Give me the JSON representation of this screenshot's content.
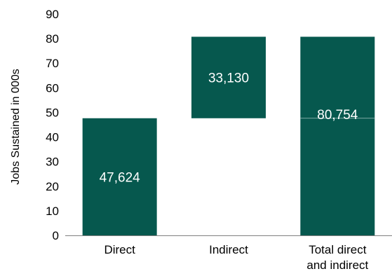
{
  "chart_data": {
    "type": "bar",
    "subtype": "waterfall",
    "categories": [
      "Direct",
      "Indirect",
      "Total direct and indirect"
    ],
    "category_lines": [
      [
        "Direct"
      ],
      [
        "Indirect"
      ],
      [
        "Total direct",
        "and indirect"
      ]
    ],
    "bars": [
      {
        "category": "Direct",
        "base": 0,
        "value": 47.624,
        "label": "47,624"
      },
      {
        "category": "Indirect",
        "base": 47.624,
        "value": 33.13,
        "label": "33,130"
      },
      {
        "category": "Total direct and indirect",
        "base": 0,
        "value": 80.754,
        "label": "80,754",
        "split_at": 47.624
      }
    ],
    "ylabel": "Jobs Sustained in 000s",
    "ylim": [
      0,
      90
    ],
    "yticks": [
      0,
      10,
      20,
      30,
      40,
      50,
      60,
      70,
      80,
      90
    ],
    "grid": false,
    "legend": "none",
    "colors": {
      "bar": "#06584E",
      "axis": "#808080",
      "label_text": "#ffffff",
      "split_line": "#7fa9a3"
    }
  }
}
